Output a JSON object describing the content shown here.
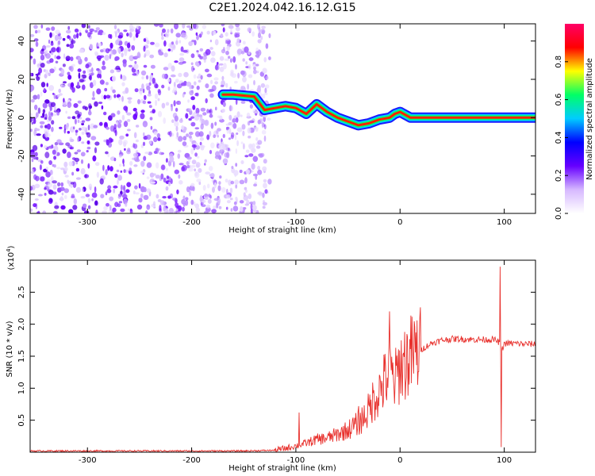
{
  "title": "C2E1.2024.042.16.12.G15",
  "chart_data": [
    {
      "type": "heatmap",
      "xlabel": "Height of straight line (km)",
      "ylabel": "Frequency (Hz)",
      "xlim": [
        -355,
        130
      ],
      "ylim": [
        -50,
        49
      ],
      "xticks": [
        -300,
        -200,
        -100,
        0,
        100
      ],
      "yticks": [
        -40,
        -20,
        0,
        20,
        40
      ],
      "colorbar": {
        "label": "Normalized spectral amplitude",
        "range": [
          0.0,
          1.0
        ],
        "ticks": [
          "0.0",
          "0.2",
          "0.4",
          "0.6",
          "0.8"
        ],
        "colormap": [
          "#ffffff",
          "#d6b8ff",
          "#6600ff",
          "#0000ff",
          "#00ccff",
          "#00ff66",
          "#ffff00",
          "#ff0000",
          "#ff0066"
        ]
      },
      "noise_region_km": [
        -355,
        -125
      ],
      "signal_track": {
        "x": [
          -170,
          -160,
          -140,
          -130,
          -120,
          -110,
          -100,
          -90,
          -80,
          -70,
          -60,
          -50,
          -40,
          -30,
          -20,
          -10,
          -5,
          0,
          10,
          20,
          40,
          60,
          80,
          90,
          100,
          130
        ],
        "y": [
          12,
          12,
          11,
          4,
          5,
          6,
          5,
          2,
          7,
          3,
          0,
          -2,
          -4,
          -3,
          -1,
          0,
          2,
          3,
          0,
          0,
          0,
          0,
          0,
          0,
          0,
          0
        ]
      },
      "grid": false
    },
    {
      "type": "line",
      "xlabel": "Height of straight line (km)",
      "ylabel": "SNR (10 * v/v)",
      "y_multiplier": "(x10",
      "y_multiplier_exp": "4",
      "y_multiplier_close": ")",
      "xlim": [
        -355,
        130
      ],
      "ylim": [
        0,
        3.0
      ],
      "xticks": [
        -300,
        -200,
        -100,
        0,
        100
      ],
      "yticks": [
        "0.5",
        "1.0",
        "1.5",
        "2.0",
        "2.5"
      ],
      "series": [
        {
          "color": "#e8312d",
          "x": [
            -355,
            -300,
            -250,
            -200,
            -150,
            -120,
            -110,
            -100,
            -90,
            -80,
            -70,
            -60,
            -50,
            -40,
            -30,
            -25,
            -20,
            -15,
            -10,
            -5,
            0,
            10,
            20,
            30,
            40,
            50,
            60,
            70,
            80,
            90,
            95,
            97,
            100,
            110,
            120,
            130
          ],
          "y": [
            0.02,
            0.02,
            0.02,
            0.02,
            0.02,
            0.03,
            0.06,
            0.1,
            0.14,
            0.2,
            0.22,
            0.28,
            0.35,
            0.45,
            0.65,
            0.85,
            0.95,
            1.1,
            1.25,
            1.1,
            1.35,
            1.5,
            1.6,
            1.7,
            1.75,
            1.77,
            1.77,
            1.76,
            1.76,
            1.76,
            1.72,
            1.55,
            1.7,
            1.7,
            1.69,
            1.69
          ],
          "spikes": [
            {
              "x": -97,
              "y": 0.62
            },
            {
              "x": -40,
              "y": 0.72
            },
            {
              "x": -10,
              "y": 2.2
            },
            {
              "x": 96,
              "y": 2.9
            },
            {
              "x": 97,
              "y": 0.08
            }
          ]
        }
      ],
      "grid": false
    }
  ]
}
